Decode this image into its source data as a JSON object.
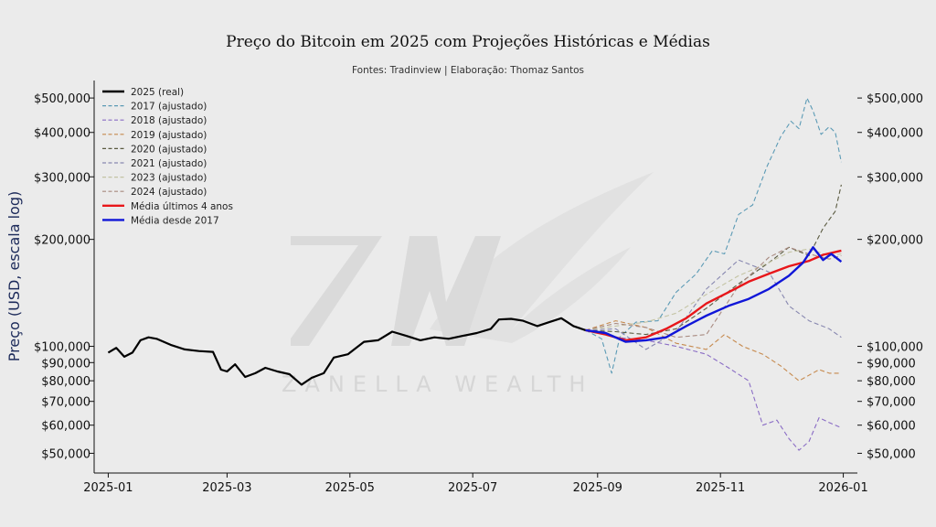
{
  "title": "Preço do Bitcoin em 2025 com Projeções Históricas e Médias",
  "subtitle": "Fontes: Tradinview | Elaboração: Thomaz Santos",
  "watermark": "ZANELLA WEALTH",
  "chart_data": {
    "type": "line",
    "ylabel": "Preço (USD, escala log)",
    "xlabel": "",
    "y_scale": "log",
    "ylim": [
      44000,
      560000
    ],
    "xlim": [
      "2024-12-25",
      "2026-01-08"
    ],
    "x_ticks": [
      "2025-01-01",
      "2025-03-01",
      "2025-05-01",
      "2025-07-01",
      "2025-09-01",
      "2025-11-01",
      "2026-01-01"
    ],
    "x_tick_labels": [
      "2025-01",
      "2025-03",
      "2025-05",
      "2025-07",
      "2025-09",
      "2025-11",
      "2026-01"
    ],
    "y_ticks": [
      50000,
      60000,
      70000,
      80000,
      90000,
      100000,
      200000,
      300000,
      400000,
      500000
    ],
    "y_tick_labels": [
      "$50,000",
      "$60,000",
      "$70,000",
      "$80,000",
      "$90,000",
      "$100,000",
      "$200,000",
      "$300,000",
      "$400,000",
      "$500,000"
    ],
    "secondary_y_axis": "right",
    "grid": false,
    "legend_position": "upper-left",
    "series": [
      {
        "name": "2025 (real)",
        "color": "#000000",
        "style": "solid",
        "width": 2.2,
        "x": [
          "2025-01-01",
          "2025-01-05",
          "2025-01-09",
          "2025-01-13",
          "2025-01-17",
          "2025-01-21",
          "2025-01-25",
          "2025-02-01",
          "2025-02-08",
          "2025-02-15",
          "2025-02-22",
          "2025-02-26",
          "2025-03-01",
          "2025-03-05",
          "2025-03-10",
          "2025-03-15",
          "2025-03-20",
          "2025-03-26",
          "2025-04-01",
          "2025-04-07",
          "2025-04-12",
          "2025-04-18",
          "2025-04-23",
          "2025-04-30",
          "2025-05-08",
          "2025-05-15",
          "2025-05-22",
          "2025-05-29",
          "2025-06-05",
          "2025-06-12",
          "2025-06-19",
          "2025-06-26",
          "2025-07-03",
          "2025-07-10",
          "2025-07-14",
          "2025-07-20",
          "2025-07-26",
          "2025-08-02",
          "2025-08-08",
          "2025-08-14",
          "2025-08-20",
          "2025-08-26"
        ],
        "y": [
          96000,
          99000,
          93500,
          96000,
          104000,
          106000,
          105000,
          101000,
          98000,
          97000,
          96500,
          86000,
          85000,
          89000,
          82000,
          84000,
          87000,
          85000,
          83500,
          78000,
          81500,
          84000,
          93000,
          95000,
          103000,
          104000,
          110000,
          107000,
          104000,
          106000,
          105000,
          107000,
          109000,
          112000,
          119000,
          119500,
          118000,
          114000,
          117000,
          120000,
          114000,
          111000
        ]
      },
      {
        "name": "2017 (ajustado)",
        "color": "#5b9ab5",
        "style": "dashed",
        "width": 1.1,
        "x": [
          "2025-08-26",
          "2025-09-03",
          "2025-09-08",
          "2025-09-12",
          "2025-09-20",
          "2025-10-01",
          "2025-10-10",
          "2025-10-20",
          "2025-10-28",
          "2025-11-03",
          "2025-11-10",
          "2025-11-17",
          "2025-11-24",
          "2025-12-01",
          "2025-12-06",
          "2025-12-10",
          "2025-12-14",
          "2025-12-17",
          "2025-12-21",
          "2025-12-25",
          "2025-12-28",
          "2025-12-31"
        ],
        "y": [
          111000,
          105000,
          84000,
          106000,
          117000,
          118000,
          142000,
          160000,
          186000,
          182000,
          235000,
          250000,
          320000,
          390000,
          430000,
          410000,
          500000,
          460000,
          395000,
          415000,
          400000,
          330000
        ]
      },
      {
        "name": "2018 (ajustado)",
        "color": "#8a6cc5",
        "style": "dashed",
        "width": 1.1,
        "x": [
          "2025-08-26",
          "2025-09-10",
          "2025-09-25",
          "2025-10-10",
          "2025-10-25",
          "2025-11-05",
          "2025-11-15",
          "2025-11-22",
          "2025-11-29",
          "2025-12-05",
          "2025-12-10",
          "2025-12-15",
          "2025-12-20",
          "2025-12-25",
          "2025-12-31"
        ],
        "y": [
          111000,
          106000,
          104000,
          100000,
          95000,
          87000,
          80000,
          60000,
          62000,
          55000,
          51000,
          54000,
          63000,
          61000,
          59000
        ]
      },
      {
        "name": "2019 (ajustado)",
        "color": "#c68a4e",
        "style": "dashed",
        "width": 1.1,
        "x": [
          "2025-08-26",
          "2025-09-10",
          "2025-09-25",
          "2025-10-10",
          "2025-10-25",
          "2025-11-03",
          "2025-11-12",
          "2025-11-22",
          "2025-12-01",
          "2025-12-10",
          "2025-12-20",
          "2025-12-25",
          "2025-12-31"
        ],
        "y": [
          111000,
          118000,
          113000,
          102000,
          98000,
          108000,
          100000,
          95000,
          88000,
          80000,
          86000,
          84000,
          84000
        ]
      },
      {
        "name": "2020 (ajustado)",
        "color": "#5a5a40",
        "style": "dashed",
        "width": 1.1,
        "x": [
          "2025-08-26",
          "2025-09-10",
          "2025-09-25",
          "2025-10-10",
          "2025-10-25",
          "2025-11-10",
          "2025-11-25",
          "2025-12-05",
          "2025-12-15",
          "2025-12-22",
          "2025-12-28",
          "2025-12-31"
        ],
        "y": [
          111000,
          110000,
          108000,
          112000,
          128000,
          150000,
          172000,
          190000,
          180000,
          215000,
          240000,
          285000
        ]
      },
      {
        "name": "2021 (ajustado)",
        "color": "#8888b0",
        "style": "dashed",
        "width": 1.1,
        "x": [
          "2025-08-26",
          "2025-09-10",
          "2025-09-25",
          "2025-10-10",
          "2025-10-25",
          "2025-11-10",
          "2025-11-25",
          "2025-12-05",
          "2025-12-15",
          "2025-12-25",
          "2025-12-31"
        ],
        "y": [
          111000,
          112000,
          98000,
          110000,
          145000,
          175000,
          162000,
          130000,
          118000,
          112000,
          106000
        ]
      },
      {
        "name": "2023 (ajustado)",
        "color": "#c4c4a4",
        "style": "dashed",
        "width": 1.1,
        "x": [
          "2025-08-26",
          "2025-09-10",
          "2025-09-25",
          "2025-10-10",
          "2025-10-25",
          "2025-11-10",
          "2025-11-25",
          "2025-12-05",
          "2025-12-15",
          "2025-12-25",
          "2025-12-31"
        ],
        "y": [
          111000,
          114000,
          117000,
          124000,
          140000,
          158000,
          172000,
          184000,
          188000,
          180000,
          182000
        ]
      },
      {
        "name": "2024 (ajustado)",
        "color": "#a88a80",
        "style": "dashed",
        "width": 1.1,
        "x": [
          "2025-08-26",
          "2025-09-10",
          "2025-09-25",
          "2025-10-10",
          "2025-10-25",
          "2025-11-10",
          "2025-11-25",
          "2025-12-05",
          "2025-12-15",
          "2025-12-25",
          "2025-12-31"
        ],
        "y": [
          111000,
          116000,
          113000,
          106000,
          108000,
          148000,
          178000,
          190000,
          182000,
          176000,
          180000
        ]
      },
      {
        "name": "Média últimos 4 anos",
        "color": "#e8161a",
        "style": "solid",
        "width": 2.4,
        "x": [
          "2025-08-26",
          "2025-09-05",
          "2025-09-15",
          "2025-09-25",
          "2025-10-05",
          "2025-10-15",
          "2025-10-25",
          "2025-11-05",
          "2025-11-15",
          "2025-11-25",
          "2025-12-05",
          "2025-12-15",
          "2025-12-22",
          "2025-12-31"
        ],
        "y": [
          111000,
          108000,
          104000,
          106000,
          112000,
          120000,
          132000,
          142000,
          152000,
          160000,
          168000,
          174000,
          181000,
          186000
        ]
      },
      {
        "name": "Média desde 2017",
        "color": "#1016d8",
        "style": "solid",
        "width": 2.4,
        "x": [
          "2025-08-26",
          "2025-09-05",
          "2025-09-15",
          "2025-09-25",
          "2025-10-05",
          "2025-10-15",
          "2025-10-25",
          "2025-11-05",
          "2025-11-15",
          "2025-11-25",
          "2025-12-05",
          "2025-12-12",
          "2025-12-17",
          "2025-12-22",
          "2025-12-26",
          "2025-12-31"
        ],
        "y": [
          111000,
          109000,
          103000,
          104000,
          106000,
          114000,
          122000,
          130000,
          136000,
          145000,
          158000,
          172000,
          190000,
          175000,
          182000,
          173000
        ]
      }
    ]
  }
}
